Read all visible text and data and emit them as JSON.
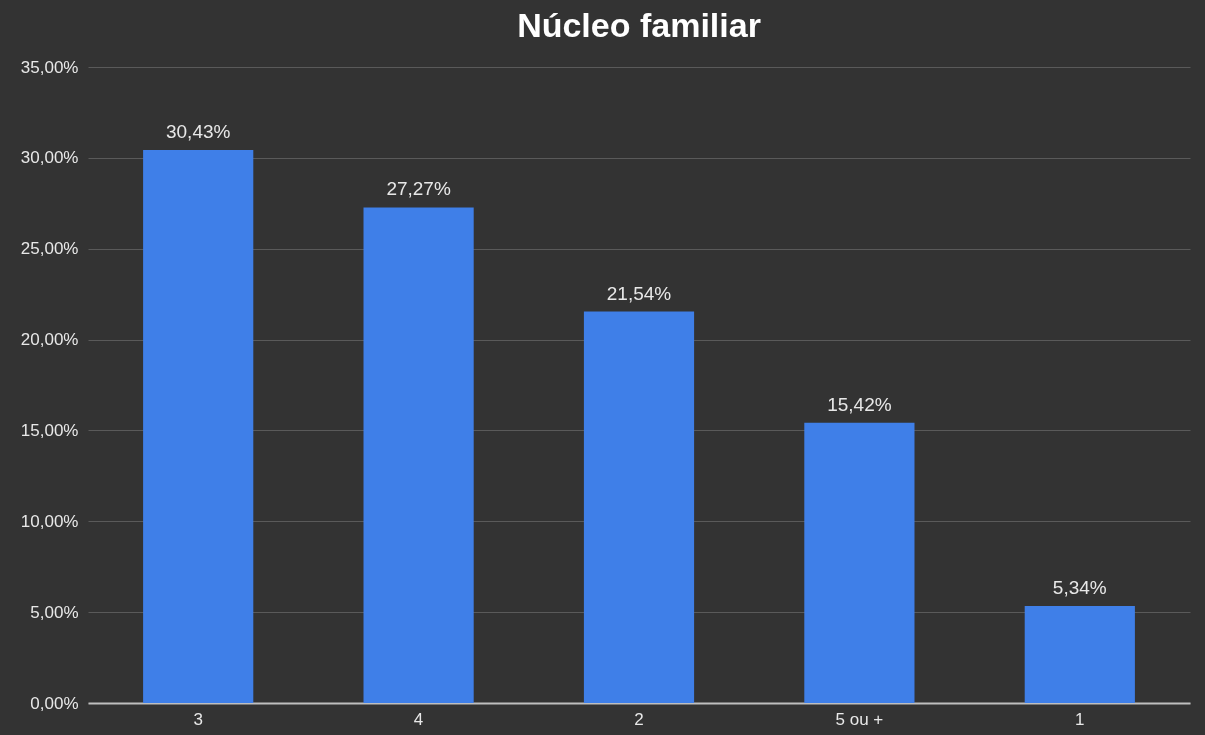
{
  "chart_data": {
    "type": "bar",
    "title": "Núcleo familiar",
    "categories": [
      "3",
      "4",
      "2",
      "5 ou +",
      "1"
    ],
    "values": [
      30.43,
      27.27,
      21.54,
      15.42,
      5.34
    ],
    "value_labels": [
      "30,43%",
      "27,27%",
      "21,54%",
      "15,42%",
      "5,34%"
    ],
    "color": "#3f7fe8",
    "ylim": [
      0,
      35
    ],
    "yticks": [
      {
        "value": 0,
        "label": "0,00%"
      },
      {
        "value": 5,
        "label": "5,00%"
      },
      {
        "value": 10,
        "label": "10,00%"
      },
      {
        "value": 15,
        "label": "15,00%"
      },
      {
        "value": 20,
        "label": "20,00%"
      },
      {
        "value": 25,
        "label": "25,00%"
      },
      {
        "value": 30,
        "label": "30,00%"
      },
      {
        "value": 35,
        "label": "35,00%"
      }
    ],
    "grid": "y"
  }
}
